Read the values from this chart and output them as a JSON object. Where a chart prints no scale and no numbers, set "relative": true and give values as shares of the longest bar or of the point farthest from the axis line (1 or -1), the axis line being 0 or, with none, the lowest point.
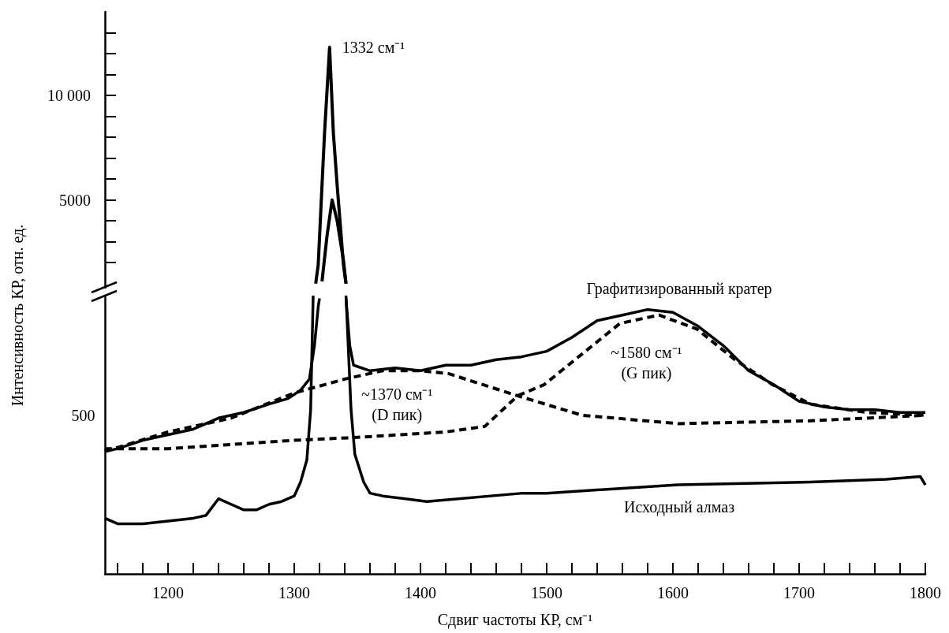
{
  "chart_data": [
    {
      "type": "line",
      "xlim": [
        1150,
        1800
      ],
      "ylim": [
        800,
        14000
      ],
      "tick_labels": "y",
      "marker": "none",
      "grid": false,
      "legend": false,
      "yticks": [
        {
          "value": 2000,
          "label": null
        },
        {
          "value": 3000,
          "label": null
        },
        {
          "value": 4000,
          "label": null
        },
        5000,
        {
          "value": 6000,
          "label": null
        },
        {
          "value": 7000,
          "label": null
        },
        {
          "value": 8000,
          "label": null
        },
        {
          "value": 9000,
          "label": null
        },
        {
          "value": 10000,
          "label": "10 000"
        },
        {
          "value": 11000,
          "label": null
        },
        {
          "value": 12000,
          "label": null
        },
        {
          "value": 13000,
          "label": null
        }
      ],
      "annotations": [
        {
          "text": "1332 см⁻¹",
          "x": 1328,
          "y": 12300
        }
      ],
      "series": [
        {
          "color": "#000000",
          "line_style": "solid",
          "x": [
            1317,
            1319,
            1322,
            1324,
            1328,
            1331,
            1334,
            1339,
            1341
          ],
          "values": [
            1000,
            1900,
            5700,
            8200,
            12300,
            8200,
            5700,
            1900,
            1000
          ]
        },
        {
          "color": "#000000",
          "line_style": "solid",
          "x": [
            1322,
            1326,
            1330,
            1334,
            1339,
            1341
          ],
          "values": [
            1100,
            3300,
            5000,
            4000,
            2100,
            1000
          ]
        }
      ]
    },
    {
      "type": "line",
      "relative": true,
      "xlim": [
        1150,
        1800
      ],
      "xlabel": "Сдвиг частоты КР, см⁻¹",
      "ylabel": "Интенсивность КР, отн. ед.",
      "marker": "none",
      "grid": false,
      "legend": false,
      "xticks": [
        {
          "value": 1160,
          "label": null
        },
        {
          "value": 1180,
          "label": null
        },
        1200,
        {
          "value": 1220,
          "label": null
        },
        {
          "value": 1240,
          "label": null
        },
        {
          "value": 1260,
          "label": null
        },
        {
          "value": 1280,
          "label": null
        },
        1300,
        {
          "value": 1320,
          "label": null
        },
        {
          "value": 1340,
          "label": null
        },
        {
          "value": 1360,
          "label": null
        },
        {
          "value": 1380,
          "label": null
        },
        1400,
        {
          "value": 1420,
          "label": null
        },
        {
          "value": 1440,
          "label": null
        },
        {
          "value": 1460,
          "label": null
        },
        {
          "value": 1480,
          "label": null
        },
        1500,
        {
          "value": 1520,
          "label": null
        },
        {
          "value": 1540,
          "label": null
        },
        {
          "value": 1560,
          "label": null
        },
        {
          "value": 1580,
          "label": null
        },
        1600,
        {
          "value": 1620,
          "label": null
        },
        {
          "value": 1640,
          "label": null
        },
        {
          "value": 1660,
          "label": null
        },
        {
          "value": 1680,
          "label": null
        },
        1700,
        {
          "value": 1720,
          "label": null
        },
        {
          "value": 1740,
          "label": null
        },
        {
          "value": 1760,
          "label": null
        },
        {
          "value": 1780,
          "label": null
        },
        1800
      ],
      "annotations": [
        "500",
        "~1370 см⁻¹\n(D пик)",
        "~1580 см⁻¹\n(G пик)"
      ],
      "series": [
        {
          "name": "Графитизированный кратер",
          "color": "#000000",
          "line_style": "solid",
          "x": [
            1150,
            1160,
            1180,
            1200,
            1220,
            1240,
            1260,
            1280,
            1295,
            1305,
            1312,
            1316,
            1319,
            1320,
            null,
            1341,
            1344,
            1347,
            1360,
            1380,
            1400,
            1420,
            1440,
            1460,
            1480,
            1500,
            1520,
            1540,
            1560,
            1580,
            1600,
            1620,
            1640,
            1660,
            1680,
            1700,
            1720,
            1740,
            1760,
            1780,
            1800
          ],
          "values": [
            0.44,
            0.45,
            0.48,
            0.5,
            0.52,
            0.56,
            0.58,
            0.61,
            0.63,
            0.66,
            0.7,
            0.82,
            0.96,
            0.99,
            null,
            0.99,
            0.82,
            0.75,
            0.73,
            0.74,
            0.73,
            0.75,
            0.75,
            0.77,
            0.78,
            0.8,
            0.85,
            0.91,
            0.93,
            0.95,
            0.94,
            0.89,
            0.82,
            0.73,
            0.68,
            0.62,
            0.6,
            0.59,
            0.59,
            0.58,
            0.58
          ]
        },
        {
          "color": "#000000",
          "line_style": "dashed",
          "x": [
            1150,
            1200,
            1250,
            1300,
            1340,
            1370,
            1400,
            1422,
            1477,
            1528,
            1604,
            1709,
            1800
          ],
          "values": [
            0.44,
            0.51,
            0.56,
            0.65,
            0.7,
            0.73,
            0.73,
            0.72,
            0.64,
            0.57,
            0.54,
            0.55,
            0.57
          ]
        },
        {
          "color": "#000000",
          "line_style": "dashed",
          "x": [
            1150,
            1200,
            1300,
            1348,
            1420,
            1451,
            1477,
            1498,
            1528,
            1558,
            1589,
            1619,
            1649,
            1679,
            1709,
            1754,
            1800
          ],
          "values": [
            0.45,
            0.45,
            0.48,
            0.49,
            0.51,
            0.53,
            0.64,
            0.68,
            0.79,
            0.9,
            0.93,
            0.88,
            0.77,
            0.68,
            0.61,
            0.58,
            0.57
          ]
        },
        {
          "name": "Исходный алмаз",
          "color": "#000000",
          "line_style": "solid",
          "x": [
            1150,
            1160,
            1180,
            1200,
            1220,
            1230,
            1240,
            1250,
            1260,
            1270,
            1280,
            1290,
            1300,
            1305,
            1310,
            1313,
            1315,
            null,
            1341,
            1345,
            1348,
            1355,
            1360,
            1370,
            1405,
            1481,
            1500,
            1604,
            1709,
            1769,
            1796,
            1800
          ],
          "values": [
            0.2,
            0.18,
            0.18,
            0.19,
            0.2,
            0.21,
            0.27,
            0.25,
            0.23,
            0.23,
            0.25,
            0.26,
            0.28,
            0.33,
            0.41,
            0.59,
            1,
            null,
            1,
            0.59,
            0.43,
            0.33,
            0.29,
            0.28,
            0.26,
            0.29,
            0.29,
            0.32,
            0.33,
            0.34,
            0.35,
            0.32
          ]
        }
      ]
    }
  ]
}
